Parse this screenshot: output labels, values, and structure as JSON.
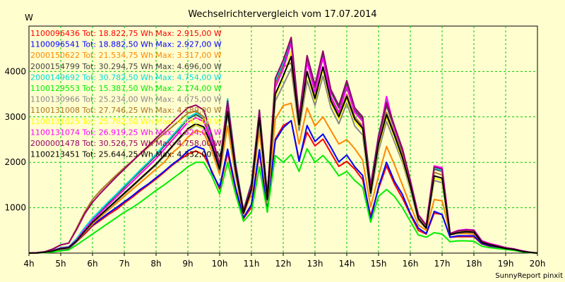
{
  "chart_data": {
    "type": "line",
    "title": "Wechselrichtervergleich vom 17.07.2014",
    "ylabel": "W",
    "xlabel": "",
    "footer": "SunnyReport pinxit",
    "xlim": [
      4,
      20
    ],
    "ylim": [
      0,
      5000
    ],
    "x_ticks": [
      4,
      5,
      6,
      7,
      8,
      9,
      10,
      11,
      12,
      13,
      14,
      15,
      16,
      17,
      18,
      19,
      20
    ],
    "x_tick_labels": [
      "4h",
      "5h",
      "6h",
      "7h",
      "8h",
      "9h",
      "10h",
      "11h",
      "12h",
      "13h",
      "14h",
      "15h",
      "16h",
      "17h",
      "18h",
      "19h",
      "20h"
    ],
    "y_ticks": [
      1000,
      2000,
      3000,
      4000
    ],
    "y_tick_labels": [
      "1000",
      "2000",
      "3000",
      "4000"
    ],
    "grid": true,
    "legend_position": "top-left",
    "x": [
      4,
      4.25,
      4.5,
      4.75,
      5,
      5.25,
      5.5,
      5.75,
      6,
      6.25,
      6.5,
      6.75,
      7,
      7.25,
      7.5,
      7.75,
      8,
      8.25,
      8.5,
      8.75,
      9,
      9.25,
      9.5,
      9.75,
      10,
      10.25,
      10.5,
      10.75,
      11,
      11.25,
      11.5,
      11.75,
      12,
      12.25,
      12.5,
      12.75,
      13,
      13.25,
      13.5,
      13.75,
      14,
      14.25,
      14.5,
      14.75,
      15,
      15.25,
      15.5,
      15.75,
      16,
      16.25,
      16.5,
      16.75,
      17,
      17.25,
      17.5,
      17.75,
      18,
      18.25,
      18.5,
      18.75,
      19,
      19.25,
      19.5,
      19.75,
      20
    ],
    "series": [
      {
        "name": "1100096436",
        "legend": "1100096436 Tot: 18.822,75 Wh Max: 2.915,00 W",
        "color": "#ff0000",
        "values": [
          0,
          5,
          15,
          40,
          80,
          100,
          250,
          420,
          600,
          720,
          850,
          960,
          1100,
          1230,
          1370,
          1500,
          1630,
          1780,
          1930,
          2060,
          2180,
          2250,
          2160,
          1810,
          1410,
          2210,
          1410,
          760,
          1010,
          2210,
          980,
          2510,
          2810,
          2910,
          2060,
          2660,
          2360,
          2510,
          2210,
          1910,
          2020,
          1850,
          1620,
          820,
          1420,
          1920,
          1520,
          1210,
          850,
          500,
          420,
          880,
          850,
          350,
          360,
          360,
          360,
          200,
          150,
          120,
          100,
          80,
          40,
          15,
          0
        ]
      },
      {
        "name": "1100096541",
        "legend": "1100096541 Tot: 18.882,50 Wh Max: 2.927,00 W",
        "color": "#0000ff",
        "values": [
          0,
          5,
          15,
          40,
          80,
          100,
          250,
          450,
          620,
          750,
          880,
          1000,
          1130,
          1260,
          1400,
          1520,
          1660,
          1800,
          1950,
          2080,
          2250,
          2350,
          2290,
          1780,
          1450,
          2290,
          1450,
          780,
          1070,
          2280,
          920,
          2480,
          2760,
          2920,
          2020,
          2810,
          2460,
          2620,
          2330,
          2010,
          2160,
          1900,
          1710,
          740,
          1460,
          2000,
          1580,
          1290,
          870,
          550,
          430,
          920,
          850,
          350,
          380,
          380,
          380,
          210,
          160,
          130,
          100,
          80,
          40,
          15,
          0
        ]
      },
      {
        "name": "2000150622",
        "legend": "2000150622 Tot: 21.534,75 Wh Max: 3.317,00 W",
        "color": "#ff8800",
        "values": [
          0,
          5,
          18,
          45,
          90,
          110,
          260,
          460,
          640,
          800,
          950,
          1100,
          1250,
          1400,
          1550,
          1700,
          1850,
          2000,
          2200,
          2350,
          2550,
          2700,
          2650,
          2250,
          1730,
          2800,
          1700,
          850,
          1300,
          2700,
          1100,
          2950,
          3250,
          3300,
          2400,
          3200,
          2800,
          3000,
          2700,
          2400,
          2500,
          2300,
          2050,
          1020,
          1700,
          2350,
          1950,
          1500,
          1050,
          620,
          500,
          1180,
          1150,
          420,
          430,
          430,
          420,
          250,
          180,
          140,
          110,
          85,
          45,
          15,
          0
        ]
      },
      {
        "name": "2000154799",
        "legend": "2000154799 Tot: 30.294,75 Wh Max: 4.696,00 W",
        "color": "#444444",
        "values": [
          0,
          5,
          20,
          60,
          120,
          140,
          300,
          550,
          760,
          930,
          1100,
          1280,
          1450,
          1630,
          1800,
          1970,
          2150,
          2350,
          2550,
          2750,
          2950,
          3050,
          2950,
          2500,
          1900,
          3350,
          1950,
          900,
          1500,
          3100,
          1250,
          3750,
          4150,
          4700,
          2950,
          4300,
          3650,
          4400,
          3550,
          3200,
          3750,
          3150,
          2950,
          1450,
          2550,
          3250,
          2750,
          2250,
          1550,
          800,
          580,
          1850,
          1800,
          420,
          480,
          500,
          490,
          250,
          200,
          160,
          110,
          90,
          50,
          20,
          0
        ]
      },
      {
        "name": "2000149692",
        "legend": "2000149692 Tot: 30.782,50 Wh Max: 4.754,00 W",
        "color": "#00dddd",
        "values": [
          0,
          5,
          20,
          60,
          120,
          140,
          320,
          560,
          770,
          950,
          1130,
          1300,
          1480,
          1650,
          1830,
          2000,
          2180,
          2380,
          2580,
          2780,
          2980,
          3080,
          3000,
          2550,
          1950,
          3400,
          2000,
          950,
          1550,
          3150,
          1300,
          3800,
          4200,
          4750,
          3000,
          4350,
          3700,
          4450,
          3600,
          3250,
          3800,
          3200,
          3000,
          1500,
          2600,
          3350,
          2800,
          2300,
          1600,
          830,
          600,
          1880,
          1820,
          420,
          490,
          510,
          500,
          260,
          200,
          160,
          120,
          90,
          50,
          20,
          0
        ]
      },
      {
        "name": "1100129553",
        "legend": "1100129553 Tot: 15.387,50 Wh Max: 2.174,00 W",
        "color": "#00ee00",
        "values": [
          0,
          5,
          10,
          25,
          50,
          70,
          180,
          300,
          420,
          540,
          660,
          780,
          900,
          1000,
          1120,
          1250,
          1380,
          1500,
          1630,
          1760,
          1900,
          2000,
          2000,
          1700,
          1300,
          2000,
          1300,
          700,
          900,
          1900,
          900,
          2150,
          2000,
          2170,
          1800,
          2300,
          2000,
          2150,
          1950,
          1700,
          1800,
          1600,
          1450,
          680,
          1250,
          1400,
          1250,
          1000,
          700,
          400,
          350,
          450,
          420,
          250,
          270,
          270,
          260,
          150,
          120,
          100,
          80,
          60,
          30,
          10,
          0
        ]
      },
      {
        "name": "1100130966",
        "legend": "1100130966 Tot: 25.234,00 Wh Max: 4.075,00 W",
        "color": "#888888",
        "values": [
          0,
          5,
          18,
          50,
          100,
          120,
          270,
          480,
          670,
          830,
          980,
          1140,
          1300,
          1460,
          1620,
          1780,
          1940,
          2130,
          2330,
          2530,
          2700,
          2820,
          2750,
          2350,
          1800,
          3050,
          1800,
          880,
          1400,
          2900,
          1150,
          3350,
          3700,
          4070,
          2700,
          3800,
          3250,
          3900,
          3200,
          2850,
          3300,
          2800,
          2600,
          1250,
          2250,
          2900,
          2450,
          2000,
          1400,
          720,
          540,
          1600,
          1550,
          400,
          440,
          460,
          450,
          230,
          180,
          140,
          100,
          80,
          40,
          15,
          0
        ]
      },
      {
        "name": "1100131008",
        "legend": "1100131008 Tot: 27.746,25 Wh Max: 4.189,00 W",
        "color": "#aa7722",
        "values": [
          0,
          10,
          30,
          90,
          180,
          220,
          550,
          900,
          1180,
          1380,
          1550,
          1720,
          1880,
          2030,
          2180,
          2330,
          2480,
          2630,
          2780,
          2930,
          3080,
          3130,
          3000,
          2450,
          1880,
          3200,
          1880,
          900,
          1450,
          3050,
          1200,
          3700,
          4100,
          4190,
          2800,
          4000,
          3450,
          4100,
          3400,
          3050,
          3500,
          3000,
          2800,
          1350,
          2450,
          3100,
          2650,
          2150,
          1500,
          780,
          560,
          1780,
          1720,
          410,
          460,
          480,
          470,
          240,
          190,
          150,
          110,
          85,
          45,
          15,
          0
        ]
      },
      {
        "name": "1100131025",
        "legend": "1100131025 Tot: 25.782,50 Wh Max: 4.443,00 W",
        "color": "#ffff00",
        "values": [
          0,
          5,
          18,
          50,
          100,
          120,
          270,
          480,
          680,
          840,
          1000,
          1160,
          1320,
          1480,
          1640,
          1800,
          1960,
          2150,
          2350,
          2550,
          2720,
          2830,
          2760,
          2400,
          1850,
          3100,
          1850,
          890,
          1420,
          2950,
          1180,
          3450,
          3850,
          4440,
          2800,
          3950,
          3350,
          4050,
          3300,
          2950,
          3400,
          2900,
          2700,
          1300,
          2350,
          3000,
          2550,
          2050,
          1450,
          750,
          550,
          1650,
          1600,
          400,
          450,
          470,
          460,
          230,
          180,
          140,
          100,
          80,
          40,
          15,
          0
        ]
      },
      {
        "name": "1100131074",
        "legend": "1100131074 Tot: 26.919,25 Wh Max: 4.624,00 W",
        "color": "#ff00ff",
        "values": [
          0,
          5,
          20,
          55,
          110,
          130,
          290,
          520,
          720,
          890,
          1060,
          1230,
          1400,
          1570,
          1740,
          1910,
          2080,
          2280,
          2480,
          2680,
          2880,
          2980,
          2900,
          2450,
          1880,
          3250,
          1900,
          920,
          1480,
          3050,
          1230,
          3650,
          4050,
          4620,
          2900,
          4200,
          3550,
          4300,
          3450,
          3100,
          3650,
          3100,
          2900,
          1420,
          2500,
          3450,
          2750,
          2300,
          1600,
          850,
          620,
          1920,
          1880,
          430,
          500,
          520,
          510,
          270,
          210,
          170,
          120,
          95,
          55,
          20,
          0
        ]
      },
      {
        "name": "2000001478",
        "legend": "2000001478 Tot: 30.526,75 Wh Max: 4.758,00 W",
        "color": "#990066",
        "values": [
          0,
          10,
          30,
          90,
          180,
          220,
          520,
          860,
          1120,
          1320,
          1500,
          1680,
          1850,
          2020,
          2190,
          2360,
          2530,
          2700,
          2870,
          3040,
          3200,
          3260,
          3150,
          2600,
          1950,
          3350,
          1950,
          940,
          1520,
          3150,
          1280,
          3850,
          4250,
          4750,
          3000,
          4350,
          3700,
          4450,
          3600,
          3250,
          3800,
          3200,
          3000,
          1480,
          2580,
          3320,
          2800,
          2300,
          1600,
          840,
          610,
          1900,
          1850,
          430,
          490,
          510,
          500,
          260,
          200,
          160,
          120,
          90,
          50,
          20,
          0
        ]
      },
      {
        "name": "1100213451",
        "legend": "1100213451 Tot: 25.644,25 Wh Max: 4.332,00 W",
        "color": "#000000",
        "values": [
          0,
          5,
          18,
          50,
          100,
          120,
          270,
          480,
          680,
          840,
          1000,
          1160,
          1320,
          1480,
          1640,
          1800,
          1960,
          2150,
          2350,
          2550,
          2740,
          2850,
          2780,
          2380,
          1850,
          3120,
          1840,
          880,
          1400,
          2980,
          1180,
          3500,
          3900,
          4330,
          2820,
          4000,
          3400,
          4100,
          3350,
          3000,
          3450,
          2950,
          2750,
          1320,
          2400,
          3050,
          2600,
          2100,
          1480,
          760,
          550,
          1700,
          1650,
          400,
          450,
          470,
          460,
          230,
          180,
          140,
          100,
          80,
          40,
          15,
          0
        ]
      }
    ]
  }
}
